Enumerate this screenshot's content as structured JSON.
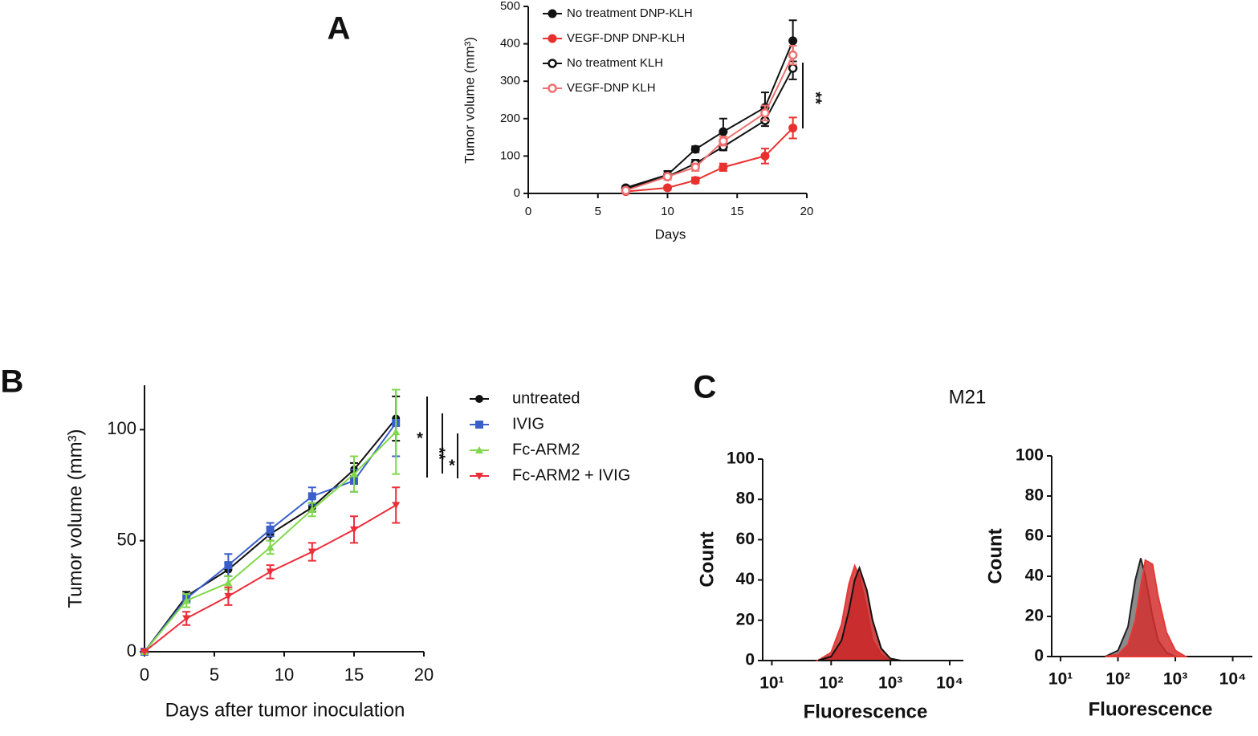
{
  "chart_data": [
    {
      "type": "line",
      "panel_label": "A",
      "xlabel": "Days",
      "ylabel": "Tumor volume (mm³)",
      "x": [
        7,
        10,
        12,
        14,
        17,
        19
      ],
      "xlim": [
        0,
        20
      ],
      "xticks": [
        0,
        5,
        10,
        15,
        20
      ],
      "ylim": [
        0,
        500
      ],
      "yticks": [
        0,
        100,
        200,
        300,
        400,
        500
      ],
      "series": [
        {
          "name": "No treatment DNP-KLH",
          "color": "#111111",
          "marker": "circle",
          "values": [
            15,
            50,
            118,
            165,
            230,
            408
          ],
          "errors": [
            5,
            10,
            8,
            35,
            40,
            55
          ]
        },
        {
          "name": "VEGF-DNP DNP-KLH",
          "color": "#e8312f",
          "marker": "circle",
          "values": [
            5,
            15,
            35,
            70,
            100,
            175
          ],
          "errors": [
            3,
            5,
            8,
            10,
            20,
            28
          ]
        },
        {
          "name": "No treatment KLH",
          "color": "#111111",
          "marker": "open-circle",
          "values": [
            12,
            45,
            80,
            125,
            195,
            335
          ],
          "errors": [
            4,
            8,
            10,
            10,
            15,
            30
          ]
        },
        {
          "name": "VEGF-DNP KLH",
          "color": "#f07070",
          "marker": "open-circle",
          "values": [
            8,
            45,
            70,
            140,
            215,
            370
          ],
          "errors": [
            4,
            8,
            10,
            12,
            20,
            25
          ]
        }
      ],
      "annotations": [
        "**"
      ]
    },
    {
      "type": "line",
      "panel_label": "B",
      "xlabel": "Days after tumor inoculation",
      "ylabel": "Tumor volume (mm³)",
      "x": [
        0,
        3,
        6,
        9,
        12,
        15,
        18
      ],
      "xlim": [
        0,
        20
      ],
      "xticks": [
        0,
        5,
        10,
        15,
        20
      ],
      "ylim": [
        0,
        120
      ],
      "yticks": [
        0,
        50,
        100
      ],
      "series": [
        {
          "name": "untreated",
          "color": "#111111",
          "marker": "circle",
          "values": [
            0,
            25,
            37,
            53,
            65,
            82,
            105
          ],
          "errors": [
            0,
            2,
            3,
            3,
            2,
            3,
            10
          ]
        },
        {
          "name": "IVIG",
          "color": "#3a5fcd",
          "marker": "square",
          "values": [
            0,
            24,
            39,
            55,
            70,
            77,
            103
          ],
          "errors": [
            0,
            2,
            5,
            3,
            4,
            5,
            15
          ]
        },
        {
          "name": "Fc-ARM2",
          "color": "#7fd84a",
          "marker": "triangle",
          "values": [
            0,
            23,
            31,
            47,
            64,
            80,
            99
          ],
          "errors": [
            0,
            3,
            3,
            3,
            3,
            8,
            19
          ]
        },
        {
          "name": "Fc-ARM2 + IVIG",
          "color": "#ee2d3a",
          "marker": "triangle-down",
          "values": [
            0,
            15,
            25,
            36,
            45,
            55,
            66
          ],
          "errors": [
            0,
            3,
            4,
            3,
            4,
            6,
            8
          ]
        }
      ],
      "annotations": [
        "*",
        "**",
        "*"
      ]
    },
    {
      "type": "area",
      "panel_label": "C",
      "title": "M21",
      "xlabel": "Fluorescence",
      "ylabel": "Count",
      "log_x": true,
      "x": [
        60,
        100,
        150,
        200,
        250,
        300,
        400,
        500,
        700,
        1000,
        1500
      ],
      "xlim": [
        7,
        17000
      ],
      "xticks": [
        {
          "value": 10,
          "label": "10¹"
        },
        {
          "value": 100,
          "label": "10²"
        },
        {
          "value": 1000,
          "label": "10³"
        },
        {
          "value": 10000,
          "label": "10⁴"
        }
      ],
      "ylim": [
        0,
        100
      ],
      "yticks": [
        0,
        20,
        40,
        60,
        80,
        100
      ],
      "series": [
        {
          "color": "#e53935",
          "fill": "#d32f2f",
          "values": [
            0,
            4,
            18,
            38,
            47,
            42,
            25,
            10,
            3,
            0,
            0
          ]
        },
        {
          "color": "#111111",
          "fill": "#c62828",
          "values": [
            0,
            2,
            10,
            25,
            40,
            46,
            35,
            20,
            6,
            1,
            0
          ]
        }
      ]
    },
    {
      "type": "area",
      "xlabel": "Fluorescence",
      "ylabel": "Count",
      "log_x": true,
      "x": [
        60,
        100,
        150,
        200,
        250,
        300,
        400,
        500,
        700,
        1000,
        1500
      ],
      "xlim": [
        7,
        22000
      ],
      "xticks": [
        {
          "value": 10,
          "label": "10¹"
        },
        {
          "value": 100,
          "label": "10²"
        },
        {
          "value": 1000,
          "label": "10³"
        },
        {
          "value": 10000,
          "label": "10⁴"
        }
      ],
      "ylim": [
        0,
        100
      ],
      "yticks": [
        0,
        20,
        40,
        60,
        80,
        100
      ],
      "series": [
        {
          "color": "#222222",
          "fill": "#777777",
          "values": [
            0,
            3,
            15,
            38,
            49,
            40,
            20,
            8,
            2,
            0,
            0
          ]
        },
        {
          "color": "#e53935",
          "fill": "#d32f2f",
          "values": [
            0,
            1,
            6,
            18,
            35,
            48,
            46,
            30,
            12,
            3,
            0
          ]
        }
      ]
    }
  ]
}
